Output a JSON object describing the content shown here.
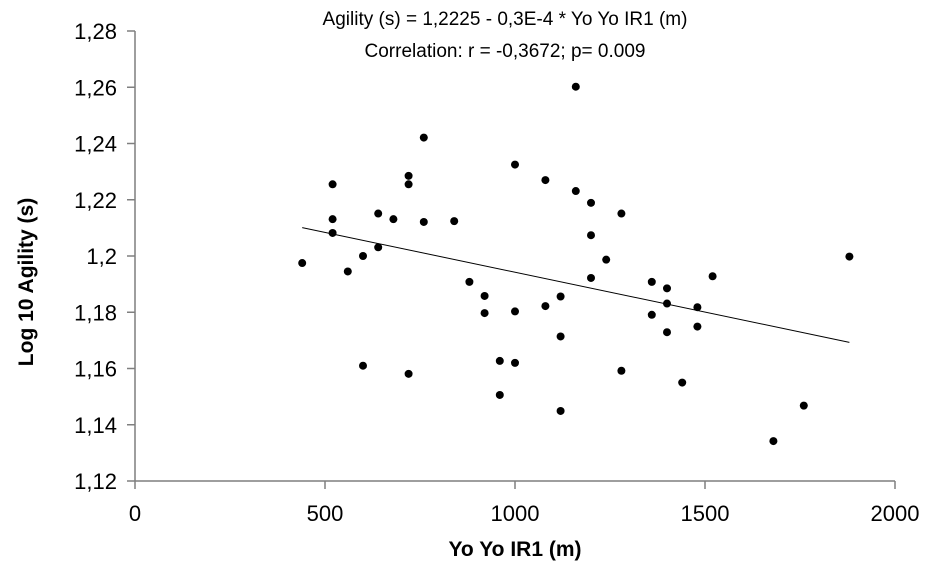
{
  "chart_data": {
    "type": "scatter",
    "title": "Agility (s) = 1,2225 - 0,3E-4  * Yo Yo IR1 (m)",
    "subtitle": "Correlation: r = -0,3672; p= 0.009",
    "xlabel": "Yo Yo IR1 (m)",
    "ylabel": "Log 10 Agility (s)",
    "xlim": [
      0,
      2000
    ],
    "ylim": [
      1.12,
      1.28
    ],
    "x_ticks": [
      0,
      500,
      1000,
      1500,
      2000
    ],
    "x_tick_labels": [
      "0",
      "500",
      "1000",
      "1500",
      "2000"
    ],
    "y_ticks": [
      1.12,
      1.14,
      1.16,
      1.18,
      1.2,
      1.22,
      1.24,
      1.26,
      1.28
    ],
    "y_tick_labels": [
      "1,12",
      "1,14",
      "1,16",
      "1,18",
      "1,2",
      "1,22",
      "1,24",
      "1,26",
      "1,28"
    ],
    "grid": false,
    "legend": "none",
    "colors": {
      "points": "#000000",
      "line": "#000000",
      "axis": "#7f7f7f"
    },
    "trendline": {
      "x": [
        440,
        1880
      ],
      "y": [
        1.2101,
        1.1693
      ]
    },
    "points": [
      [
        440,
        1.1975
      ],
      [
        520,
        1.2255
      ],
      [
        520,
        1.2131
      ],
      [
        520,
        1.2082
      ],
      [
        560,
        1.1945
      ],
      [
        600,
        1.2
      ],
      [
        600,
        1.161
      ],
      [
        640,
        1.2151
      ],
      [
        640,
        1.2031
      ],
      [
        680,
        1.2131
      ],
      [
        720,
        1.2285
      ],
      [
        720,
        1.2255
      ],
      [
        720,
        1.1581
      ],
      [
        760,
        1.2421
      ],
      [
        760,
        1.2121
      ],
      [
        840,
        1.2124
      ],
      [
        880,
        1.1908
      ],
      [
        920,
        1.1858
      ],
      [
        920,
        1.1797
      ],
      [
        960,
        1.1627
      ],
      [
        960,
        1.1506
      ],
      [
        1000,
        1.2325
      ],
      [
        1000,
        1.1803
      ],
      [
        1000,
        1.162
      ],
      [
        1080,
        1.227
      ],
      [
        1080,
        1.1822
      ],
      [
        1120,
        1.1856
      ],
      [
        1120,
        1.1714
      ],
      [
        1120,
        1.1449
      ],
      [
        1160,
        1.2602
      ],
      [
        1160,
        1.2231
      ],
      [
        1200,
        1.2189
      ],
      [
        1200,
        1.2074
      ],
      [
        1200,
        1.1922
      ],
      [
        1240,
        1.1987
      ],
      [
        1280,
        1.2151
      ],
      [
        1280,
        1.1592
      ],
      [
        1360,
        1.1908
      ],
      [
        1360,
        1.1791
      ],
      [
        1400,
        1.1885
      ],
      [
        1400,
        1.1831
      ],
      [
        1400,
        1.1729
      ],
      [
        1440,
        1.155
      ],
      [
        1480,
        1.1818
      ],
      [
        1480,
        1.1749
      ],
      [
        1520,
        1.1928
      ],
      [
        1680,
        1.1342
      ],
      [
        1760,
        1.1468
      ],
      [
        1880,
        1.1998
      ]
    ]
  }
}
